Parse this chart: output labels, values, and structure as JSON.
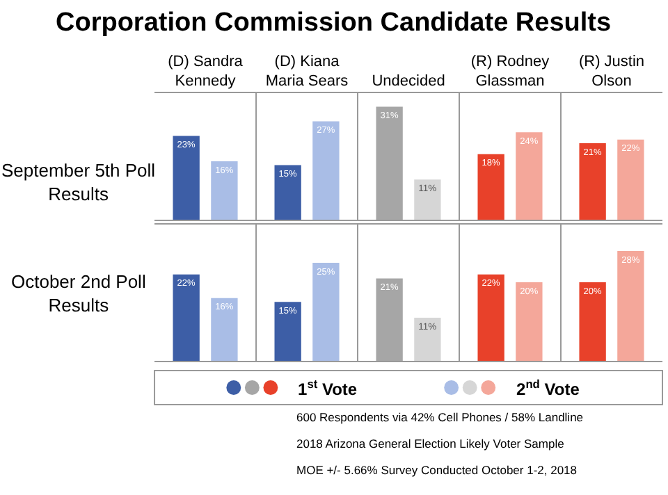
{
  "chart_data": [
    {
      "type": "bar",
      "title": "Corporation Commission Candidate Results",
      "ylabel": "September 5th Poll Results",
      "categories": [
        "(D) Sandra Kennedy",
        "(D) Kiana Maria Sears",
        "Undecided",
        "(R) Rodney Glassman",
        "(R) Justin Olson"
      ],
      "tick_labels": "x",
      "legend": "bottom",
      "series": [
        {
          "name": "1$^{st}$ Vote",
          "colors": [
            "#3d5ea6",
            "#3d5ea6",
            "#a6a6a6",
            "#e8412a",
            "#e8412a"
          ],
          "values": [
            23,
            15,
            31,
            18,
            21
          ],
          "value_labels": [
            "23%",
            "15%",
            "31%",
            "18%",
            "21%"
          ]
        },
        {
          "name": "2$^{nd}$ Vote",
          "colors": [
            "#a9bde6",
            "#a9bde6",
            "#d6d6d6",
            "#f4a79a",
            "#f4a79a"
          ],
          "values": [
            16,
            27,
            11,
            24,
            22
          ],
          "value_labels": [
            "16%",
            "27%",
            "11%",
            "24%",
            "22%"
          ]
        }
      ]
    },
    {
      "type": "bar",
      "ylabel": "October 2nd Poll Results",
      "categories": [
        "(D) Sandra Kennedy",
        "(D) Kiana Maria Sears",
        "Undecided",
        "(R) Rodney Glassman",
        "(R) Justin Olson"
      ],
      "tick_labels": false,
      "annotations": [
        "600 Respondents via 42% Cell Phones / 58% Landline",
        "2018 Arizona General Election Likely Voter Sample",
        "MOE +/- 5.66% Survey Conducted October 1-2, 2018"
      ],
      "series": [
        {
          "colors": [
            "#3d5ea6",
            "#3d5ea6",
            "#a6a6a6",
            "#e8412a",
            "#e8412a"
          ],
          "values": [
            22,
            15,
            21,
            22,
            20
          ],
          "value_labels": [
            "22%",
            "15%",
            "21%",
            "22%",
            "20%"
          ]
        },
        {
          "colors": [
            "#a9bde6",
            "#a9bde6",
            "#d6d6d6",
            "#f4a79a",
            "#f4a79a"
          ],
          "values": [
            16,
            25,
            11,
            20,
            28
          ],
          "value_labels": [
            "16%",
            "25%",
            "11%",
            "20%",
            "28%"
          ]
        }
      ]
    }
  ]
}
